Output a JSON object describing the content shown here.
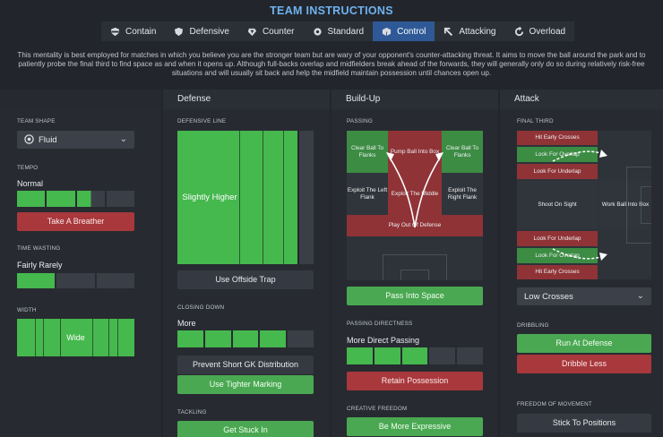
{
  "header": {
    "title": "TEAM INSTRUCTIONS"
  },
  "tabs": [
    {
      "label": "Contain",
      "icon": "shield-bar-icon"
    },
    {
      "label": "Defensive",
      "icon": "shield-icon"
    },
    {
      "label": "Counter",
      "icon": "counter-arrow-icon"
    },
    {
      "label": "Standard",
      "icon": "gear-icon"
    },
    {
      "label": "Control",
      "icon": "cube-icon",
      "active": true
    },
    {
      "label": "Attacking",
      "icon": "arrow-icon"
    },
    {
      "label": "Overload",
      "icon": "circle-arrow-icon"
    }
  ],
  "description": "This mentality is best employed for matches in which you believe you are the stronger team but are wary of your opponent's counter-attacking threat. It aims to move the ball around the park and to patiently probe the final third to find space as and when it opens up. Although full-backs overlap and midfielders break ahead of the forwards, they will generally only do so during relatively risk-free situations and will usually sit back and help the midfield maintain possession until chances open up.",
  "general": {
    "team_shape_label": "TEAM SHAPE",
    "team_shape_value": "Fluid",
    "tempo_label": "TEMPO",
    "tempo_value": "Normal",
    "tempo_level": 0.63,
    "tempo_button": "Take A Breather",
    "time_wasting_label": "TIME WASTING",
    "time_wasting_value": "Fairly Rarely",
    "time_wasting_level": 0.35,
    "width_label": "WIDTH",
    "width_value": "Wide",
    "width_level": 1.0
  },
  "defense": {
    "heading": "Defense",
    "defensive_line_label": "DEFENSIVE LINE",
    "defensive_line_value": "Slightly Higher",
    "offside_trap": "Use Offside Trap",
    "closing_down_label": "CLOSING DOWN",
    "closing_down_value": "More",
    "closing_down_level": 0.8,
    "prevent_gk": "Prevent Short GK Distribution",
    "tighter_marking": "Use Tighter Marking",
    "tackling_label": "TACKLING",
    "get_stuck_in": "Get Stuck In"
  },
  "buildup": {
    "heading": "Build-Up",
    "passing_label": "PASSING",
    "cells": {
      "clear_left": "Clear Ball To Flanks",
      "pump": "Pump Ball Into Box",
      "clear_right": "Clear Ball To Flanks",
      "exploit_left": "Exploit The Left Flank",
      "exploit_middle": "Exploit The Middle",
      "exploit_right": "Exploit The Right Flank",
      "play_out": "Play Out Of Defense"
    },
    "pass_into_space": "Pass Into Space",
    "directness_label": "PASSING DIRECTNESS",
    "directness_value": "More Direct Passing",
    "directness_level": 0.58,
    "retain_possession": "Retain Possession",
    "creative_label": "CREATIVE FREEDOM",
    "be_more_expressive": "Be More Expressive"
  },
  "attack": {
    "heading": "Attack",
    "final_third_label": "FINAL THIRD",
    "cells": {
      "early_crosses_top": "Hit Early Crosses",
      "overlap_top": "Look For Overlap",
      "underlap_top": "Look For Underlap",
      "shoot_on_sight": "Shoot On Sight",
      "work_ball": "Work Ball Into Box",
      "underlap_bottom": "Look For Underlap",
      "overlap_bottom": "Look For Overlap",
      "early_crosses_bottom": "Hit Early Crosses"
    },
    "crosses_value": "Low Crosses",
    "dribbling_label": "DRIBBLING",
    "run_at_defense": "Run At Defense",
    "dribble_less": "Dribble Less",
    "freedom_label": "FREEDOM OF MOVEMENT",
    "stick_to_positions": "Stick To Positions"
  },
  "colors": {
    "accent": "#2f5996",
    "green": "#45b84e",
    "red": "#a8383c",
    "title": "#6fb2f0"
  }
}
